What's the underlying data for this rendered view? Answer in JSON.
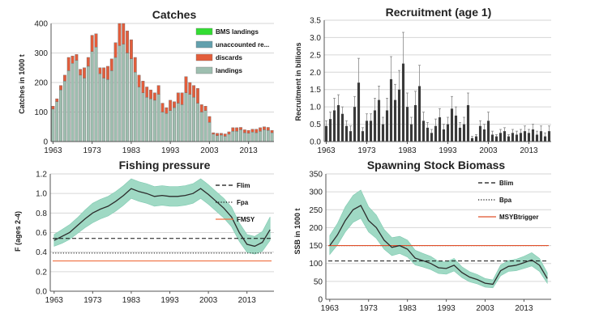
{
  "chart_data": [
    {
      "id": "catches",
      "type": "bar",
      "title": "Catches",
      "ylabel": "Catches in 1000 t",
      "ylim": [
        0,
        400
      ],
      "yticks": [
        0,
        100,
        200,
        300,
        400
      ],
      "xticks": [
        1963,
        1973,
        1983,
        1993,
        2003,
        2013
      ],
      "grid": true,
      "legend_position": "top-right",
      "categories": [
        1963,
        1964,
        1965,
        1966,
        1967,
        1968,
        1969,
        1970,
        1971,
        1972,
        1973,
        1974,
        1975,
        1976,
        1977,
        1978,
        1979,
        1980,
        1981,
        1982,
        1983,
        1984,
        1985,
        1986,
        1987,
        1988,
        1989,
        1990,
        1991,
        1992,
        1993,
        1994,
        1995,
        1996,
        1997,
        1998,
        1999,
        2000,
        2001,
        2002,
        2003,
        2004,
        2005,
        2006,
        2007,
        2008,
        2009,
        2010,
        2011,
        2012,
        2013,
        2014,
        2015,
        2016,
        2017,
        2018,
        2019
      ],
      "series": [
        {
          "name": "landings",
          "color": "#9ebfb0",
          "values": [
            110,
            135,
            175,
            205,
            240,
            265,
            275,
            225,
            215,
            255,
            305,
            320,
            230,
            215,
            210,
            240,
            285,
            325,
            330,
            300,
            280,
            235,
            185,
            165,
            150,
            145,
            140,
            160,
            100,
            95,
            105,
            115,
            130,
            125,
            165,
            160,
            150,
            130,
            100,
            105,
            65,
            25,
            20,
            22,
            18,
            25,
            35,
            35,
            40,
            30,
            28,
            32,
            30,
            35,
            40,
            38,
            30
          ]
        },
        {
          "name": "unaccounted re...",
          "color": "#62a0ad",
          "values": [
            0,
            0,
            0,
            0,
            0,
            0,
            0,
            0,
            0,
            0,
            0,
            0,
            0,
            0,
            0,
            0,
            0,
            0,
            0,
            0,
            0,
            0,
            0,
            0,
            0,
            0,
            0,
            0,
            0,
            0,
            0,
            0,
            0,
            0,
            0,
            0,
            0,
            0,
            0,
            0,
            0,
            0,
            0,
            0,
            0,
            0,
            0,
            0,
            0,
            0,
            0,
            0,
            0,
            0,
            0,
            0,
            0
          ]
        },
        {
          "name": "discards",
          "color": "#e35d3b",
          "values": [
            10,
            10,
            15,
            20,
            45,
            25,
            20,
            20,
            35,
            30,
            55,
            45,
            20,
            35,
            45,
            40,
            50,
            75,
            70,
            75,
            65,
            50,
            40,
            40,
            35,
            30,
            25,
            30,
            30,
            20,
            35,
            20,
            35,
            40,
            55,
            40,
            40,
            50,
            25,
            15,
            20,
            5,
            8,
            6,
            8,
            8,
            12,
            12,
            8,
            10,
            10,
            10,
            12,
            12,
            10,
            10,
            8
          ]
        },
        {
          "name": "BMS landings",
          "color": "#33dd33",
          "values": [
            0,
            0,
            0,
            0,
            0,
            0,
            0,
            0,
            0,
            0,
            0,
            0,
            0,
            0,
            0,
            0,
            0,
            0,
            0,
            0,
            0,
            0,
            0,
            0,
            0,
            0,
            0,
            0,
            0,
            0,
            0,
            0,
            0,
            0,
            0,
            0,
            0,
            0,
            0,
            0,
            0,
            0,
            0,
            0,
            0,
            0,
            0,
            0,
            0,
            0,
            0,
            0,
            0,
            0,
            0,
            0,
            0
          ]
        }
      ],
      "legend_order": [
        "BMS landings",
        "unaccounted re...",
        "discards",
        "landings"
      ]
    },
    {
      "id": "recruitment",
      "type": "bar",
      "title": "Recruitment (age 1)",
      "ylabel": "Recruitment in billions",
      "ylim": [
        0,
        3.5
      ],
      "yticks": [
        0,
        0.5,
        1,
        1.5,
        2,
        2.5,
        3,
        3.5
      ],
      "xticks": [
        1963,
        1973,
        1983,
        1993,
        2003,
        2013
      ],
      "grid": true,
      "bar_color": "#3a3a3a",
      "categories": [
        1963,
        1964,
        1965,
        1966,
        1967,
        1968,
        1969,
        1970,
        1971,
        1972,
        1973,
        1974,
        1975,
        1976,
        1977,
        1978,
        1979,
        1980,
        1981,
        1982,
        1983,
        1984,
        1985,
        1986,
        1987,
        1988,
        1989,
        1990,
        1991,
        1992,
        1993,
        1994,
        1995,
        1996,
        1997,
        1998,
        1999,
        2000,
        2001,
        2002,
        2003,
        2004,
        2005,
        2006,
        2007,
        2008,
        2009,
        2010,
        2011,
        2012,
        2013,
        2014,
        2015,
        2016,
        2017,
        2018
      ],
      "values": [
        0.45,
        0.65,
        0.9,
        1.05,
        0.8,
        0.45,
        0.3,
        1.0,
        1.7,
        0.3,
        0.6,
        0.6,
        0.9,
        1.2,
        0.5,
        0.9,
        1.8,
        1.2,
        1.5,
        2.25,
        1.0,
        0.5,
        1.05,
        1.6,
        0.6,
        0.4,
        0.25,
        0.45,
        0.7,
        0.35,
        0.5,
        0.95,
        0.75,
        0.4,
        0.5,
        1.05,
        0.1,
        0.15,
        0.45,
        0.35,
        0.6,
        0.2,
        0.15,
        0.25,
        0.3,
        0.15,
        0.25,
        0.2,
        0.25,
        0.3,
        0.25,
        0.35,
        0.2,
        0.3,
        0.15,
        0.3
      ],
      "upper": [
        0.6,
        0.85,
        1.25,
        1.35,
        1.0,
        0.6,
        0.45,
        1.3,
        2.4,
        0.4,
        0.8,
        0.8,
        1.25,
        1.6,
        0.7,
        1.25,
        2.45,
        1.65,
        2.05,
        3.15,
        1.4,
        0.7,
        1.45,
        2.2,
        0.85,
        0.55,
        0.35,
        0.65,
        0.95,
        0.5,
        0.7,
        1.3,
        1.0,
        0.55,
        0.7,
        1.4,
        0.15,
        0.2,
        0.6,
        0.5,
        0.85,
        0.3,
        0.2,
        0.35,
        0.4,
        0.2,
        0.35,
        0.3,
        0.35,
        0.45,
        0.35,
        0.5,
        0.3,
        0.45,
        0.25,
        0.45
      ]
    },
    {
      "id": "fishing",
      "type": "line",
      "title": "Fishing pressure",
      "ylabel": "F (ages 2-4)",
      "ylim": [
        0,
        1.2
      ],
      "yticks": [
        0,
        0.2,
        0.4,
        0.6,
        0.8,
        1,
        1.2
      ],
      "xticks": [
        1963,
        1973,
        1983,
        1993,
        2003,
        2013
      ],
      "grid": true,
      "legend_position": "top-right",
      "band_color": "#9fd9c4",
      "line_color": "#2c2c2c",
      "x": [
        1963,
        1965,
        1967,
        1969,
        1971,
        1973,
        1975,
        1977,
        1979,
        1981,
        1983,
        1985,
        1987,
        1989,
        1991,
        1993,
        1995,
        1997,
        1999,
        2001,
        2003,
        2005,
        2007,
        2009,
        2011,
        2013,
        2015,
        2017,
        2019
      ],
      "values": [
        0.52,
        0.56,
        0.6,
        0.67,
        0.74,
        0.8,
        0.84,
        0.87,
        0.92,
        0.98,
        1.05,
        1.02,
        1.0,
        0.97,
        0.98,
        0.97,
        0.97,
        0.98,
        1.0,
        1.05,
        0.99,
        0.92,
        0.85,
        0.76,
        0.6,
        0.48,
        0.46,
        0.5,
        0.63
      ],
      "lower": [
        0.46,
        0.49,
        0.53,
        0.59,
        0.65,
        0.7,
        0.74,
        0.77,
        0.82,
        0.88,
        0.95,
        0.92,
        0.9,
        0.87,
        0.88,
        0.87,
        0.87,
        0.88,
        0.9,
        0.95,
        0.89,
        0.82,
        0.75,
        0.66,
        0.51,
        0.4,
        0.38,
        0.41,
        0.52
      ],
      "upper": [
        0.58,
        0.63,
        0.68,
        0.75,
        0.83,
        0.9,
        0.94,
        0.97,
        1.02,
        1.08,
        1.15,
        1.12,
        1.1,
        1.07,
        1.08,
        1.07,
        1.07,
        1.08,
        1.1,
        1.15,
        1.09,
        1.02,
        0.95,
        0.86,
        0.7,
        0.58,
        0.56,
        0.61,
        0.76
      ],
      "references": [
        {
          "name": "Flim",
          "value": 0.54,
          "style": "dashed",
          "color": "#111111"
        },
        {
          "name": "Fpa",
          "value": 0.39,
          "style": "dotted",
          "color": "#111111"
        },
        {
          "name": "FMSY",
          "value": 0.31,
          "style": "solid",
          "color": "#f07040"
        }
      ]
    },
    {
      "id": "ssb",
      "type": "line",
      "title": "Spawning Stock Biomass",
      "ylabel": "SSB in 1000 t",
      "ylim": [
        0,
        350
      ],
      "yticks": [
        0,
        50,
        100,
        150,
        200,
        250,
        300,
        350
      ],
      "xticks": [
        1963,
        1973,
        1983,
        1993,
        2003,
        2013
      ],
      "grid": true,
      "legend_position": "top-right",
      "band_color": "#9fd9c4",
      "line_color": "#2c2c2c",
      "x": [
        1963,
        1965,
        1967,
        1969,
        1971,
        1973,
        1975,
        1977,
        1979,
        1981,
        1983,
        1985,
        1987,
        1989,
        1991,
        1993,
        1995,
        1997,
        1999,
        2001,
        2003,
        2005,
        2007,
        2009,
        2011,
        2013,
        2015,
        2017,
        2019
      ],
      "values": [
        150,
        180,
        220,
        250,
        262,
        220,
        200,
        165,
        145,
        150,
        140,
        115,
        108,
        100,
        88,
        86,
        95,
        75,
        62,
        55,
        45,
        42,
        80,
        92,
        95,
        102,
        110,
        95,
        58
      ],
      "lower": [
        125,
        152,
        188,
        215,
        226,
        188,
        170,
        140,
        122,
        128,
        118,
        96,
        90,
        83,
        72,
        70,
        79,
        61,
        49,
        43,
        34,
        32,
        66,
        78,
        80,
        86,
        93,
        78,
        45
      ],
      "upper": [
        178,
        212,
        258,
        290,
        305,
        258,
        235,
        195,
        172,
        176,
        165,
        137,
        128,
        120,
        106,
        104,
        114,
        91,
        77,
        69,
        58,
        54,
        96,
        108,
        112,
        120,
        130,
        114,
        74
      ],
      "references": [
        {
          "name": "Blim",
          "value": 107,
          "style": "dashed",
          "color": "#111111"
        },
        {
          "name": "Bpa",
          "value": 150,
          "style": "dotted",
          "color": "#111111"
        },
        {
          "name": "MSYBtrigger",
          "value": 150,
          "style": "solid",
          "color": "#e0502a"
        }
      ]
    }
  ]
}
